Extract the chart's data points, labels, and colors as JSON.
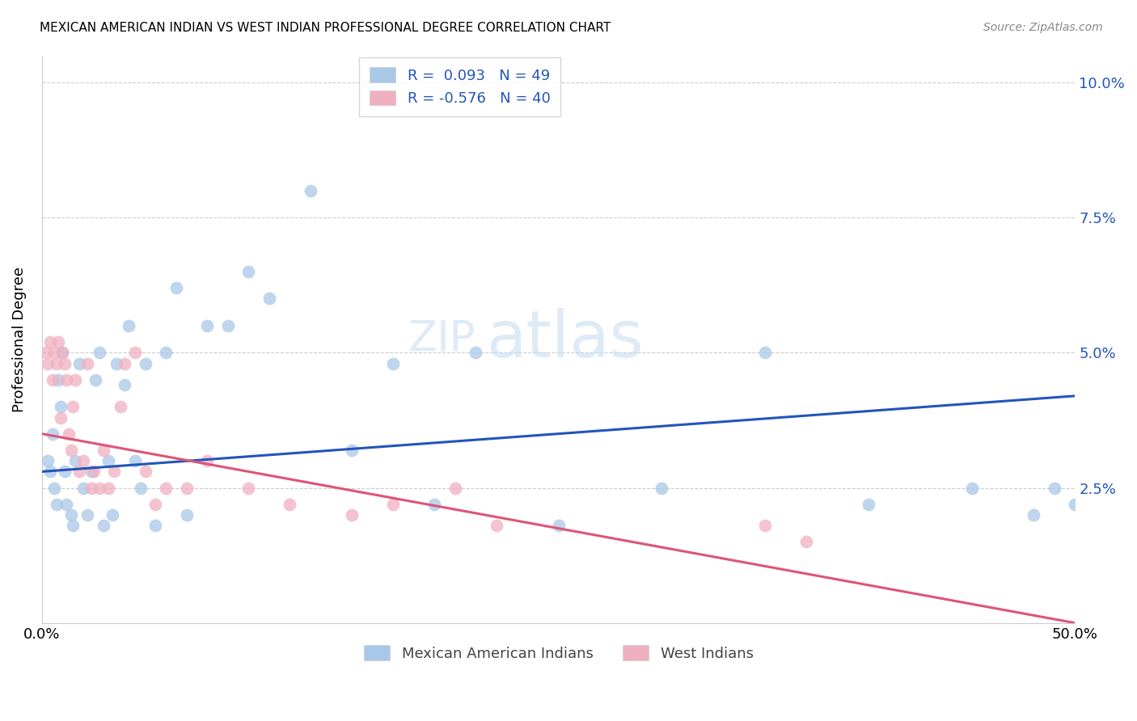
{
  "title": "MEXICAN AMERICAN INDIAN VS WEST INDIAN PROFESSIONAL DEGREE CORRELATION CHART",
  "source": "Source: ZipAtlas.com",
  "ylabel": "Professional Degree",
  "legend_blue_label": "Mexican American Indians",
  "legend_pink_label": "West Indians",
  "legend_blue_text": "R =  0.093   N = 49",
  "legend_pink_text": "R = -0.576   N = 40",
  "x_min": 0.0,
  "x_max": 0.5,
  "y_min": 0.0,
  "y_max": 0.105,
  "blue_color": "#a8c8e8",
  "pink_color": "#f0b0c0",
  "blue_line_color": "#2255bb",
  "pink_line_color": "#dd5577",
  "watermark_zip": "ZIP",
  "watermark_atlas": "atlas",
  "blue_line_x0": 0.0,
  "blue_line_y0": 0.028,
  "blue_line_x1": 0.5,
  "blue_line_y1": 0.042,
  "pink_line_x0": 0.0,
  "pink_line_y0": 0.035,
  "pink_line_x1": 0.5,
  "pink_line_y1": 0.0,
  "blue_x": [
    0.003,
    0.004,
    0.005,
    0.006,
    0.007,
    0.008,
    0.009,
    0.01,
    0.011,
    0.012,
    0.014,
    0.015,
    0.016,
    0.018,
    0.02,
    0.022,
    0.024,
    0.026,
    0.028,
    0.03,
    0.032,
    0.034,
    0.036,
    0.04,
    0.042,
    0.045,
    0.048,
    0.05,
    0.055,
    0.06,
    0.065,
    0.07,
    0.08,
    0.09,
    0.1,
    0.11,
    0.13,
    0.15,
    0.17,
    0.19,
    0.21,
    0.25,
    0.3,
    0.35,
    0.4,
    0.45,
    0.48,
    0.49,
    0.5
  ],
  "blue_y": [
    0.03,
    0.028,
    0.035,
    0.025,
    0.022,
    0.045,
    0.04,
    0.05,
    0.028,
    0.022,
    0.02,
    0.018,
    0.03,
    0.048,
    0.025,
    0.02,
    0.028,
    0.045,
    0.05,
    0.018,
    0.03,
    0.02,
    0.048,
    0.044,
    0.055,
    0.03,
    0.025,
    0.048,
    0.018,
    0.05,
    0.062,
    0.02,
    0.055,
    0.055,
    0.065,
    0.06,
    0.08,
    0.032,
    0.048,
    0.022,
    0.05,
    0.018,
    0.025,
    0.05,
    0.022,
    0.025,
    0.02,
    0.025,
    0.022
  ],
  "pink_x": [
    0.002,
    0.003,
    0.004,
    0.005,
    0.006,
    0.007,
    0.008,
    0.009,
    0.01,
    0.011,
    0.012,
    0.013,
    0.014,
    0.015,
    0.016,
    0.018,
    0.02,
    0.022,
    0.024,
    0.025,
    0.028,
    0.03,
    0.032,
    0.035,
    0.038,
    0.04,
    0.045,
    0.05,
    0.055,
    0.06,
    0.07,
    0.08,
    0.1,
    0.12,
    0.15,
    0.17,
    0.2,
    0.22,
    0.35,
    0.37
  ],
  "pink_y": [
    0.05,
    0.048,
    0.052,
    0.045,
    0.05,
    0.048,
    0.052,
    0.038,
    0.05,
    0.048,
    0.045,
    0.035,
    0.032,
    0.04,
    0.045,
    0.028,
    0.03,
    0.048,
    0.025,
    0.028,
    0.025,
    0.032,
    0.025,
    0.028,
    0.04,
    0.048,
    0.05,
    0.028,
    0.022,
    0.025,
    0.025,
    0.03,
    0.025,
    0.022,
    0.02,
    0.022,
    0.025,
    0.018,
    0.018,
    0.015
  ]
}
